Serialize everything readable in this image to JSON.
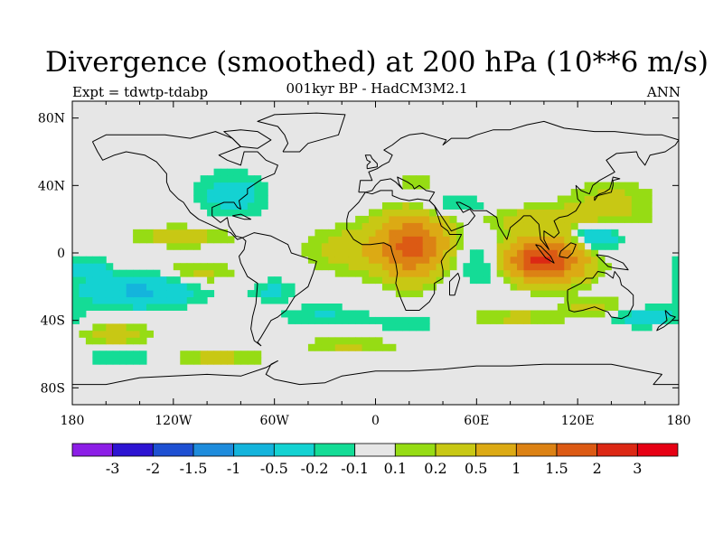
{
  "title": "Divergence (smoothed) at 200 hPa (10**6 m/s)",
  "subtitle": "001kyr BP - HadCM3M2.1",
  "left_label": "Expt = tdwtp-tdabp",
  "right_label": "ANN",
  "lat_ticks": [
    "80N",
    "40N",
    "0",
    "40S",
    "80S"
  ],
  "lon_ticks": [
    "180",
    "120W",
    "60W",
    "0",
    "60E",
    "120E",
    "180"
  ],
  "colorbar": {
    "colors": [
      "#8c1ee6",
      "#2d14d2",
      "#1e50d2",
      "#1e8cdc",
      "#14b4dc",
      "#14d2d2",
      "#14dc96",
      "#e6e6e6",
      "#96dc14",
      "#c8c814",
      "#dcaa14",
      "#dc8214",
      "#dc5a14",
      "#dc2814",
      "#e60014"
    ],
    "labels": [
      "-3",
      "-2",
      "-1.5",
      "-1",
      "-0.5",
      "-0.2",
      "-0.1",
      "0.1",
      "0.2",
      "0.5",
      "1",
      "1.5",
      "2",
      "3"
    ]
  },
  "chart_data": {
    "type": "heatmap",
    "projection": "cylindrical-equidistant",
    "title": "Divergence (smoothed) at 200 hPa (10**6 m/s)",
    "subtitle": "001kyr BP - HadCM3M2.1",
    "experiment": "Expt = tdwtp-tdabp",
    "season": "ANN",
    "lon_range": [
      -180,
      180
    ],
    "lat_range": [
      -90,
      90
    ],
    "contour_levels": [
      -3,
      -2,
      -1.5,
      -1,
      -0.5,
      -0.2,
      -0.1,
      0.1,
      0.2,
      0.5,
      1,
      1.5,
      2,
      3
    ],
    "blobs": [
      {
        "lon": 22,
        "lat": 5,
        "rx": 18,
        "ry": 18,
        "v": 1.5
      },
      {
        "lon": 98,
        "lat": -4,
        "rx": 24,
        "ry": 12,
        "v": 2.2
      },
      {
        "lon": 0,
        "lat": 2,
        "rx": 38,
        "ry": 14,
        "v": 0.4
      },
      {
        "lon": 110,
        "lat": 20,
        "rx": 45,
        "ry": 8,
        "v": 0.4
      },
      {
        "lon": 140,
        "lat": 33,
        "rx": 25,
        "ry": 9,
        "v": 0.25
      },
      {
        "lon": -140,
        "lat": -22,
        "rx": 35,
        "ry": 10,
        "v": -0.55
      },
      {
        "lon": -172,
        "lat": -8,
        "rx": 12,
        "ry": 6,
        "v": -0.3
      },
      {
        "lon": -155,
        "lat": -48,
        "rx": 20,
        "ry": 6,
        "v": 0.35
      },
      {
        "lon": 70,
        "lat": -5,
        "rx": 20,
        "ry": 14,
        "v": -0.5
      },
      {
        "lon": 130,
        "lat": 10,
        "rx": 15,
        "ry": 9,
        "v": -0.55
      },
      {
        "lon": -85,
        "lat": 35,
        "rx": 22,
        "ry": 14,
        "v": -0.3
      },
      {
        "lon": -60,
        "lat": -22,
        "rx": 15,
        "ry": 7,
        "v": -0.25
      },
      {
        "lon": -30,
        "lat": -37,
        "rx": 30,
        "ry": 6,
        "v": -0.22
      },
      {
        "lon": -115,
        "lat": 10,
        "rx": 30,
        "ry": 6,
        "v": 0.3
      },
      {
        "lon": -105,
        "lat": -12,
        "rx": 22,
        "ry": 7,
        "v": 0.3
      },
      {
        "lon": 85,
        "lat": -38,
        "rx": 30,
        "ry": 5,
        "v": 0.25
      },
      {
        "lon": 130,
        "lat": -32,
        "rx": 18,
        "ry": 6,
        "v": 0.3
      },
      {
        "lon": 160,
        "lat": -38,
        "rx": 25,
        "ry": 6,
        "v": -0.3
      },
      {
        "lon": -150,
        "lat": -62,
        "rx": 25,
        "ry": 5,
        "v": -0.22
      },
      {
        "lon": -95,
        "lat": -62,
        "rx": 30,
        "ry": 6,
        "v": 0.25
      },
      {
        "lon": -15,
        "lat": -55,
        "rx": 30,
        "ry": 5,
        "v": 0.22
      },
      {
        "lon": 20,
        "lat": -42,
        "rx": 18,
        "ry": 5,
        "v": -0.22
      },
      {
        "lon": 45,
        "lat": 28,
        "rx": 25,
        "ry": 7,
        "v": -0.25
      },
      {
        "lon": 25,
        "lat": 42,
        "rx": 12,
        "ry": 4,
        "v": 0.2
      }
    ]
  }
}
